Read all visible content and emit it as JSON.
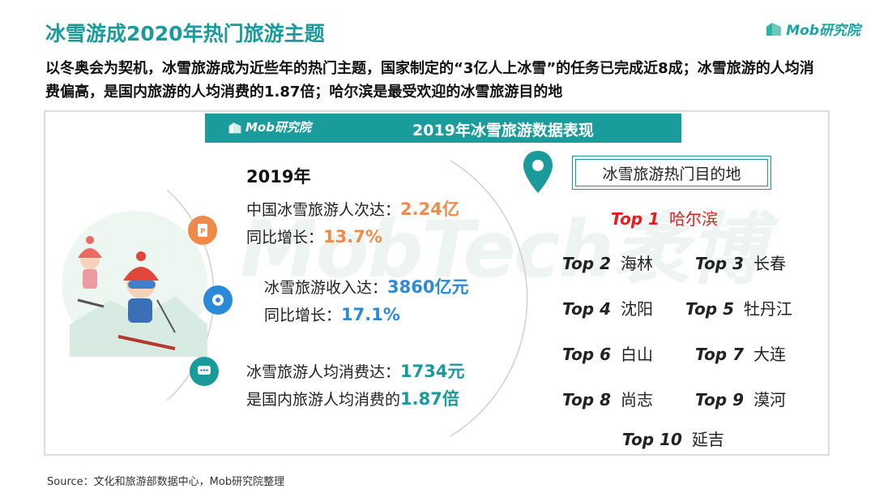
{
  "header": {
    "title": "冰雪游成2020年热门旅游主题",
    "logo_text": "Mob研究院",
    "subtitle": "以冬奥会为契机，冰雪旅游成为近些年的热门主题，国家制定的“3亿人上冰雪”的任务已完成近8成；冰雪旅游的人均消费偏高，是国内旅游的人均消费的1.87倍；哈尔滨是最受欢迎的冰雪旅游目的地"
  },
  "panel": {
    "banner_logo": "Mob研究院",
    "banner_title": "2019年冰雪旅游数据表现",
    "watermark": "MobTech袤博",
    "year": "2019年",
    "stats": [
      {
        "line1_label": "中国冰雪旅游人次达：",
        "line1_value": "2.24亿",
        "line2_label": "同比增长：",
        "line2_value": "13.7%",
        "color": "#f08a4b",
        "icon": "document-icon"
      },
      {
        "line1_label": "冰雪旅游收入达：",
        "line1_value": "3860亿元",
        "line2_label": "同比增长：",
        "line2_value": "17.1%",
        "color": "#2a8ad8",
        "icon": "coin-icon"
      },
      {
        "line1_label": "冰雪旅游人均消费达：",
        "line1_value": "1734元",
        "line2_label": "是国内旅游人均消费的",
        "line2_value": "1.87倍",
        "color": "#1a9a9a",
        "icon": "chat-icon"
      }
    ],
    "destinations": {
      "heading": "冰雪旅游热门目的地",
      "ranks": [
        {
          "rank": "Top 1",
          "city": "哈尔滨"
        },
        {
          "rank": "Top 2",
          "city": "海林"
        },
        {
          "rank": "Top 3",
          "city": "长春"
        },
        {
          "rank": "Top 4",
          "city": "沈阳"
        },
        {
          "rank": "Top 5",
          "city": "牡丹江"
        },
        {
          "rank": "Top 6",
          "city": "白山"
        },
        {
          "rank": "Top 7",
          "city": "大连"
        },
        {
          "rank": "Top 8",
          "city": "尚志"
        },
        {
          "rank": "Top 9",
          "city": "漠河"
        },
        {
          "rank": "Top 10",
          "city": "延吉"
        }
      ]
    }
  },
  "source": "Source：文化和旅游部数据中心，Mob研究院整理"
}
